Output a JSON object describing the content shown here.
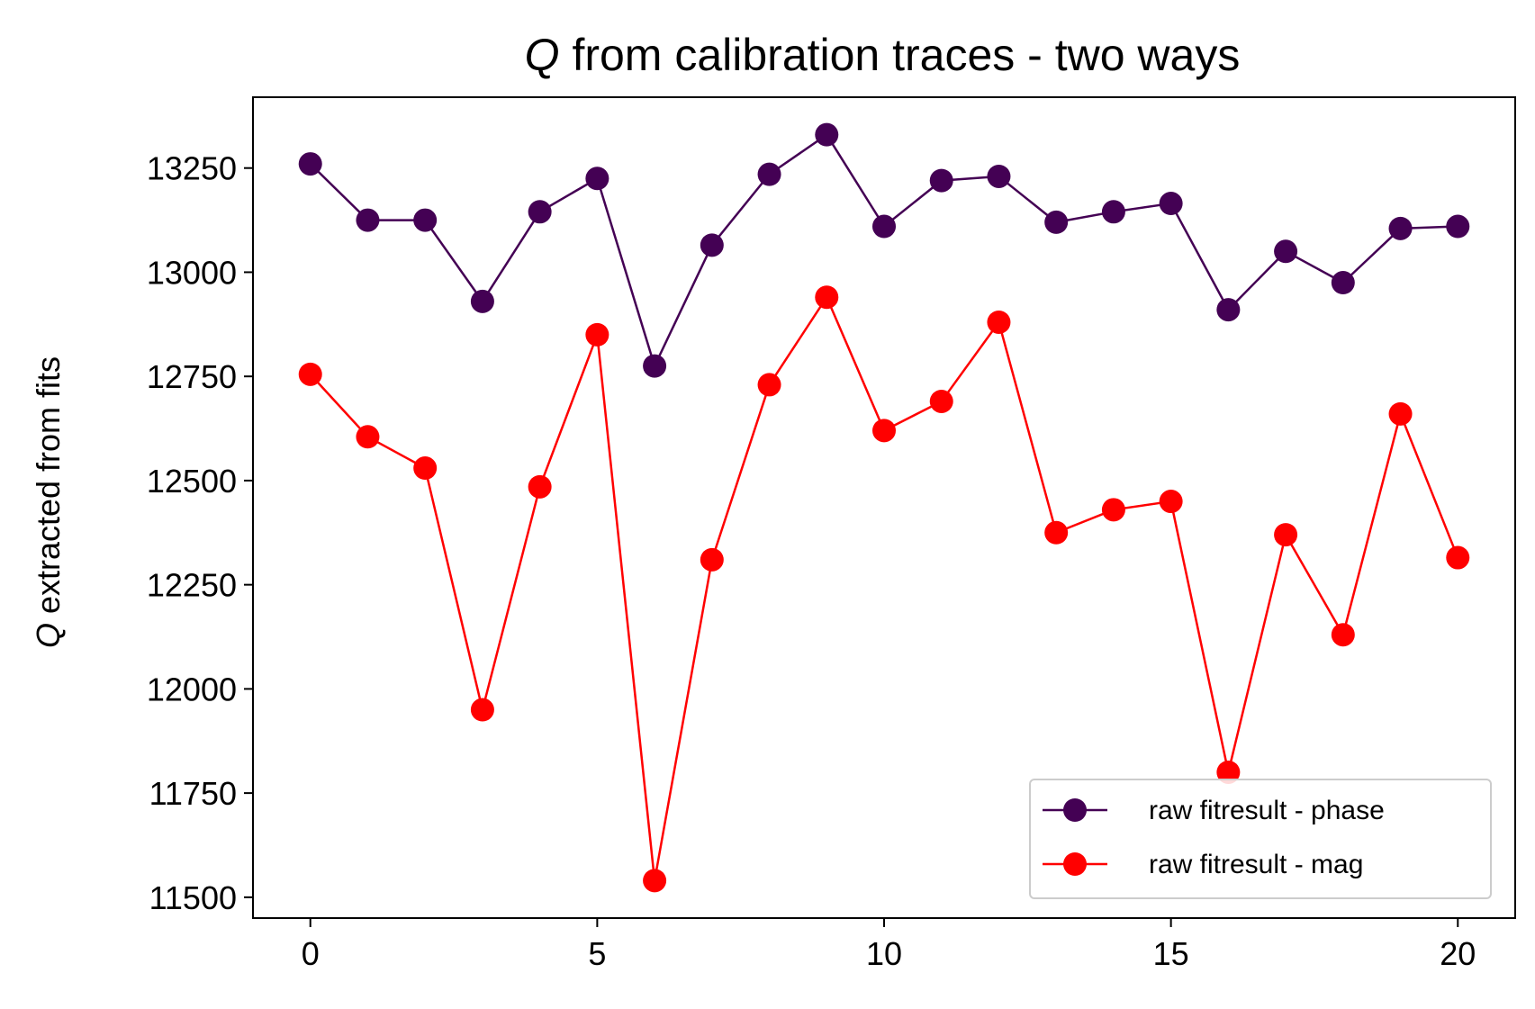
{
  "chart_data": {
    "type": "line",
    "title": "Q from calibration traces - two ways",
    "title_symbol": "Q",
    "title_rest": " from calibration traces - two ways",
    "ylabel": "Q extracted from fits",
    "ylabel_symbol": "Q",
    "ylabel_rest": " extracted from fits",
    "xlabel": "",
    "xlim": [
      -1,
      21
    ],
    "ylim": [
      11450,
      13420
    ],
    "x_ticks": [
      0,
      5,
      10,
      15,
      20
    ],
    "y_ticks": [
      11500,
      11750,
      12000,
      12250,
      12500,
      12750,
      13000,
      13250
    ],
    "grid": false,
    "legend_position": "lower-right",
    "x": [
      0,
      1,
      2,
      3,
      4,
      5,
      6,
      7,
      8,
      9,
      10,
      11,
      12,
      13,
      14,
      15,
      16,
      17,
      18,
      19,
      20
    ],
    "series": [
      {
        "name": "raw fitresult - phase",
        "color": "#440154",
        "values": [
          13260,
          13125,
          13125,
          12930,
          13145,
          13225,
          12775,
          13065,
          13235,
          13330,
          13110,
          13220,
          13230,
          13120,
          13145,
          13165,
          12910,
          13050,
          12975,
          13105,
          13110
        ]
      },
      {
        "name": "raw fitresult - mag",
        "color": "#ff0000",
        "values": [
          12755,
          12605,
          12530,
          11950,
          12485,
          12850,
          11540,
          12310,
          12730,
          12940,
          12620,
          12690,
          12880,
          12375,
          12430,
          12450,
          11800,
          12370,
          12130,
          12660,
          12315
        ]
      }
    ]
  }
}
